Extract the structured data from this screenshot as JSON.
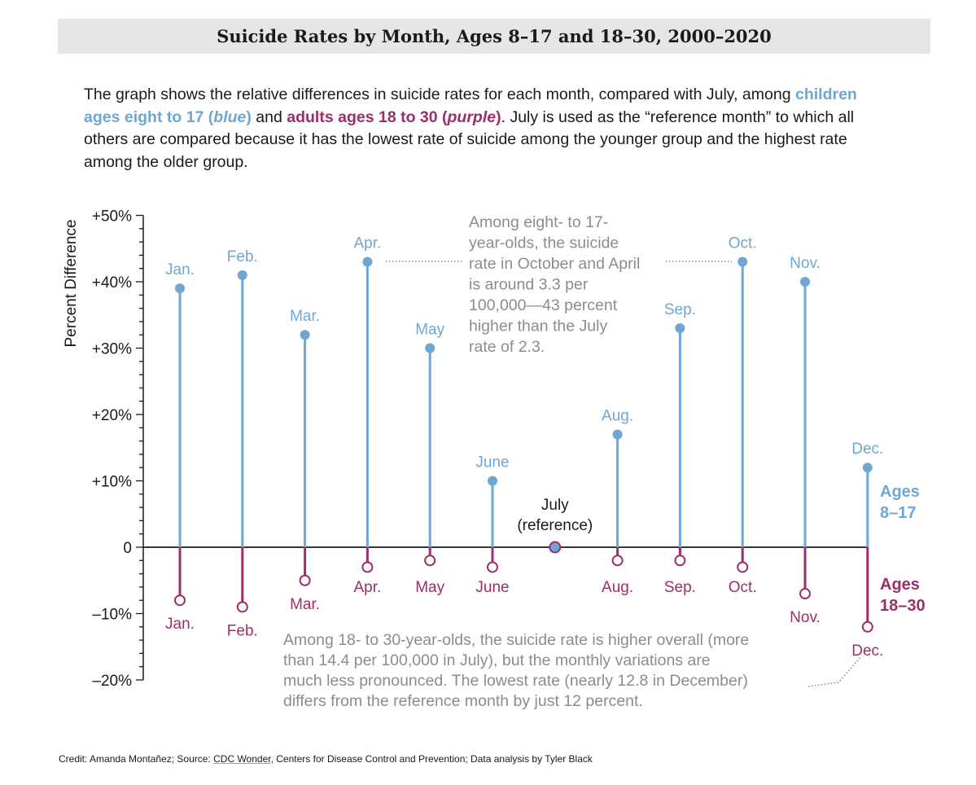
{
  "title": "Suicide Rates by Month, Ages 8–17 and 18–30, 2000–2020",
  "intro": {
    "p1": "The graph shows the relative differences in suicide rates for each month, compared with July, among ",
    "blue_a": "children ages eight to 17 (",
    "blue_b": "blue",
    "blue_c": ")",
    "p2": " and ",
    "purple_a": "adults ages 18 to 30 (",
    "purple_b": "purple",
    "purple_c": ")",
    "p3": ". July is used as the “reference month” to which all others are compared because it has the lowest rate of suicide among the younger group and the highest rate among the older group."
  },
  "credit": {
    "prefix": "Credit: Amanda Montañez; Source: ",
    "link": "CDC Wonder",
    "suffix": ", Centers for Disease Control and Prevention; Data analysis by Tyler Black"
  },
  "chart_data": {
    "type": "lollipop",
    "ylabel": "Percent Difference",
    "ylim": [
      -20,
      50
    ],
    "yticks": [
      {
        "value": 50,
        "label": "+50%"
      },
      {
        "value": 40,
        "label": "+40%"
      },
      {
        "value": 30,
        "label": "+30%"
      },
      {
        "value": 20,
        "label": "+20%"
      },
      {
        "value": 10,
        "label": "+10%"
      },
      {
        "value": 0,
        "label": "0"
      },
      {
        "value": -10,
        "label": "–10%"
      },
      {
        "value": -20,
        "label": "–20%"
      }
    ],
    "categories": [
      "Jan.",
      "Feb.",
      "Mar.",
      "Apr.",
      "May",
      "June",
      "July",
      "Aug.",
      "Sep.",
      "Oct.",
      "Nov.",
      "Dec."
    ],
    "series": [
      {
        "name": "Ages 8–17",
        "label_line1": "Ages",
        "label_line2": "8–17",
        "color": "#6fa6d2",
        "values": [
          39,
          41,
          32,
          43,
          30,
          10,
          0,
          17,
          33,
          43,
          40,
          12
        ]
      },
      {
        "name": "Ages 18–30",
        "label_line1": "Ages",
        "label_line2": "18–30",
        "color": "#9c2e6a",
        "values": [
          -8,
          -9,
          -5,
          -3,
          -2,
          -3,
          0,
          -2,
          -2,
          -3,
          -7,
          -12
        ]
      }
    ],
    "reference": {
      "line1": "July",
      "line2": "(reference)"
    },
    "annotations": [
      {
        "lines": [
          "Among eight- to 17-",
          "year-olds, the suicide",
          "rate in October and April",
          "is around 3.3 per",
          "100,000—43 percent",
          "higher than the July",
          "rate of 2.3."
        ]
      },
      {
        "lines": [
          "Among 18- to 30-year-olds, the suicide rate is higher overall (more",
          "than 14.4 per 100,000 in July), but the monthly variations are",
          "much less pronounced. The lowest rate (nearly 12.8 in December)",
          "differs from the reference month by just 12 percent."
        ]
      }
    ],
    "colors": {
      "blue": "#6fa6d2",
      "purple": "#9c2e6a",
      "annotation": "#8c8c8c",
      "axis": "#1a1a1a"
    }
  }
}
